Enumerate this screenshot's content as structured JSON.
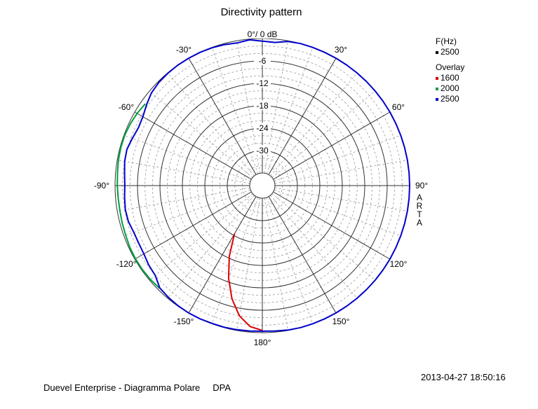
{
  "chart_data": {
    "type": "polar",
    "title": "Directivity pattern",
    "radial_unit_label": "0°/ 0 dB",
    "radial_range_db": [
      -36,
      0
    ],
    "radial_tick_labels": [
      "-6",
      "-12",
      "-18",
      "-24",
      "-30"
    ],
    "radial_ticks_db": [
      -6,
      -12,
      -18,
      -24,
      -30
    ],
    "angle_tick_labels": [
      "30°",
      "60°",
      "90°",
      "120°",
      "150°",
      "180°",
      "-150°",
      "-120°",
      "-90°",
      "-60°",
      "-30°"
    ],
    "angle_ticks_deg": [
      30,
      60,
      90,
      120,
      150,
      180,
      -150,
      -120,
      -90,
      -60,
      -30
    ],
    "legend_position": "top-right",
    "legend_frequency_title": "F(Hz)",
    "legend_frequency": {
      "name": "2500",
      "color": "#000000"
    },
    "legend_overlay_title": "Overlay",
    "series": [
      {
        "name": "1600",
        "color": "#dd0000",
        "angles_deg": [
          -180,
          -175,
          -170,
          -165,
          -160,
          -155,
          -150,
          -145,
          -140,
          -135,
          -130,
          -125,
          -120,
          -115,
          -110,
          -105,
          -100,
          -95,
          -90,
          -85,
          -80,
          -75,
          -70,
          -65,
          -60,
          -55,
          -50,
          -45,
          -40,
          -35,
          -30,
          -25,
          -20,
          -15,
          -10,
          -5,
          0,
          5,
          10,
          15,
          20,
          25,
          30,
          35,
          40,
          45,
          50,
          55,
          60,
          65,
          70,
          75,
          80,
          85,
          90,
          95,
          100,
          105,
          110,
          115,
          120,
          125,
          130,
          135,
          140,
          145,
          150,
          155,
          160,
          165,
          170,
          175,
          180
        ],
        "values_db": [
          -0.6,
          -1.5,
          -4,
          -8,
          -13,
          -18.5,
          -24.5,
          -30,
          -30,
          -30,
          -30,
          -30,
          -30,
          -30,
          -30,
          -30,
          -30,
          -30,
          -30,
          -30,
          -30,
          -30,
          -30,
          -30,
          -30,
          -30,
          -30,
          -30,
          -30,
          -30,
          -30,
          -30,
          -30,
          -30,
          -30,
          -30,
          -30,
          -30,
          -30,
          -30,
          -30,
          -30,
          -30,
          -30,
          -30,
          -30,
          -30,
          -30,
          -30,
          -30,
          -30,
          -30,
          -30,
          -30,
          -30,
          -30,
          -30,
          -30,
          -30,
          -30,
          -30,
          -30,
          -30,
          -30,
          -30,
          -30,
          -30,
          -30,
          -30,
          -30,
          -30,
          -30,
          -30
        ]
      },
      {
        "name": "2000",
        "color": "#00a040",
        "angles_deg": [
          -180,
          -175,
          -170,
          -165,
          -160,
          -155,
          -150,
          -145,
          -140,
          -135,
          -130,
          -125,
          -120,
          -115,
          -110,
          -105,
          -100,
          -95,
          -90,
          -85,
          -80,
          -75,
          -70,
          -65,
          -60,
          -55,
          -50,
          -45,
          -40,
          -35,
          -30,
          -25,
          -20,
          -15,
          -10,
          -5,
          0,
          5,
          10,
          15,
          20,
          25,
          30,
          35,
          40,
          45,
          50,
          55,
          60,
          65,
          70,
          75,
          80,
          85,
          90,
          95,
          100,
          105,
          110,
          115,
          120,
          125,
          130,
          135,
          140,
          145,
          150,
          155,
          160,
          165,
          170,
          175,
          180
        ],
        "values_db": [
          -30,
          -30,
          -30,
          -30,
          -30,
          -30,
          -30,
          -30,
          -30,
          -0.5,
          -0.3,
          -0.2,
          -0.2,
          -0.3,
          -0.5,
          -0.6,
          -0.7,
          -0.7,
          -0.6,
          -0.5,
          -0.3,
          -0.2,
          -0.2,
          -0.4,
          -0.7,
          -1.2,
          -30,
          -30,
          -30,
          -30,
          -30,
          -30,
          -30,
          -30,
          -30,
          -30,
          -30,
          -30,
          -30,
          -30,
          -30,
          -30,
          -30,
          -30,
          -30,
          -30,
          -30,
          -30,
          -30,
          -30,
          -30,
          -30,
          -30,
          -30,
          -30,
          -30,
          -30,
          -30,
          -30,
          -30,
          -30,
          -30,
          -30,
          -30,
          -30,
          -30,
          -30,
          -30,
          -30,
          -30,
          -30,
          -30,
          -30
        ]
      },
      {
        "name": "2500",
        "color": "#0000cc",
        "angles_deg": [
          -180,
          -175,
          -170,
          -165,
          -160,
          -155,
          -150,
          -145,
          -140,
          -135,
          -130,
          -125,
          -120,
          -115,
          -110,
          -105,
          -100,
          -95,
          -90,
          -85,
          -80,
          -75,
          -70,
          -65,
          -60,
          -55,
          -50,
          -45,
          -40,
          -35,
          -30,
          -25,
          -20,
          -15,
          -10,
          -5,
          0,
          5,
          10,
          15,
          20,
          25,
          30,
          35,
          40,
          45,
          50,
          55,
          60,
          65,
          70,
          75,
          80,
          85,
          90,
          95,
          100,
          105,
          110,
          115,
          120,
          125,
          130,
          135,
          140,
          145,
          150,
          155,
          160,
          165,
          170,
          175,
          180
        ],
        "values_db": [
          -0.4,
          -0.3,
          -0.2,
          -0.1,
          -0.1,
          0,
          0,
          -0.1,
          -0.3,
          -0.6,
          -2,
          -2.3,
          -2.8,
          -2.9,
          -2.8,
          -2.3,
          -2.2,
          -2.4,
          -2.6,
          -2.4,
          -2.0,
          -1.9,
          -2.4,
          -2.8,
          -2.5,
          -1.6,
          -0.7,
          -0.3,
          -0.1,
          0,
          0,
          0,
          -0.1,
          -0.3,
          -0.6,
          -0.2,
          -0.7,
          -0.9,
          -0.2,
          0,
          0,
          0,
          0,
          0,
          0,
          0,
          0,
          0,
          0,
          0,
          0,
          0,
          0,
          0,
          0,
          0,
          0,
          0,
          0,
          0,
          0,
          0,
          0,
          0,
          0,
          0,
          0,
          0,
          0,
          0,
          -0.1,
          -0.3,
          -0.4
        ]
      }
    ]
  },
  "side_label": "ARTA",
  "timestamp": "2013-04-27  18:50:16",
  "footer_company": "Duevel Enterprise - Diagramma Polare",
  "footer_tag": "DPA"
}
